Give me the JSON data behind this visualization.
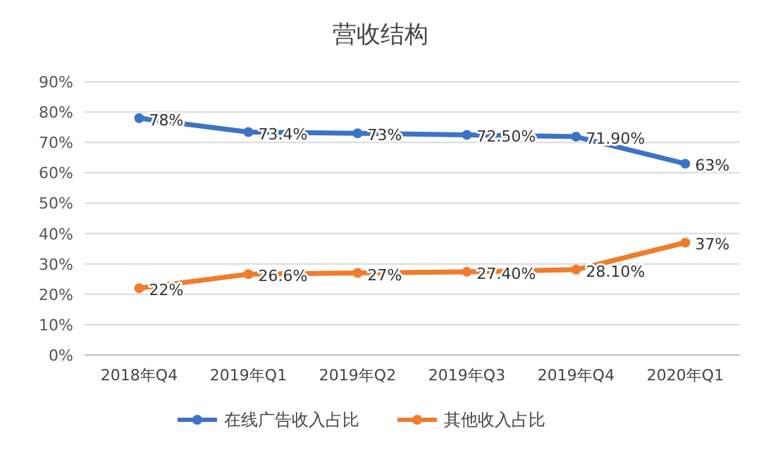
{
  "chart_data": {
    "type": "line",
    "title": "营收结构",
    "categories": [
      "2018年Q4",
      "2019年Q1",
      "2019年Q2",
      "2019年Q3",
      "2019年Q4",
      "2020年Q1"
    ],
    "series": [
      {
        "name": "在线广告收入占比",
        "color": "#3d73c5",
        "values": [
          78,
          73.4,
          73,
          72.5,
          71.9,
          63
        ],
        "value_labels": [
          "78%",
          "73.4%",
          "73%",
          "72.50%",
          "71.90%",
          "63%"
        ]
      },
      {
        "name": "其他收入占比",
        "color": "#f07c2c",
        "values": [
          22,
          26.6,
          27,
          27.4,
          28.1,
          37
        ],
        "value_labels": [
          "22%",
          "26.6%",
          "27%",
          "27.40%",
          "28.10%",
          "37%"
        ]
      }
    ],
    "ylim": [
      0,
      90
    ],
    "yticks": [
      {
        "value": 0,
        "label": "0%"
      },
      {
        "value": 10,
        "label": "10%"
      },
      {
        "value": 20,
        "label": "20%"
      },
      {
        "value": 30,
        "label": "30%"
      },
      {
        "value": 40,
        "label": "40%"
      },
      {
        "value": 50,
        "label": "50%"
      },
      {
        "value": 60,
        "label": "60%"
      },
      {
        "value": 70,
        "label": "70%"
      },
      {
        "value": 80,
        "label": "80%"
      },
      {
        "value": 90,
        "label": "90%"
      }
    ],
    "grid": "y",
    "legend": "bottom",
    "marker": "circle",
    "line_style": "solid"
  }
}
